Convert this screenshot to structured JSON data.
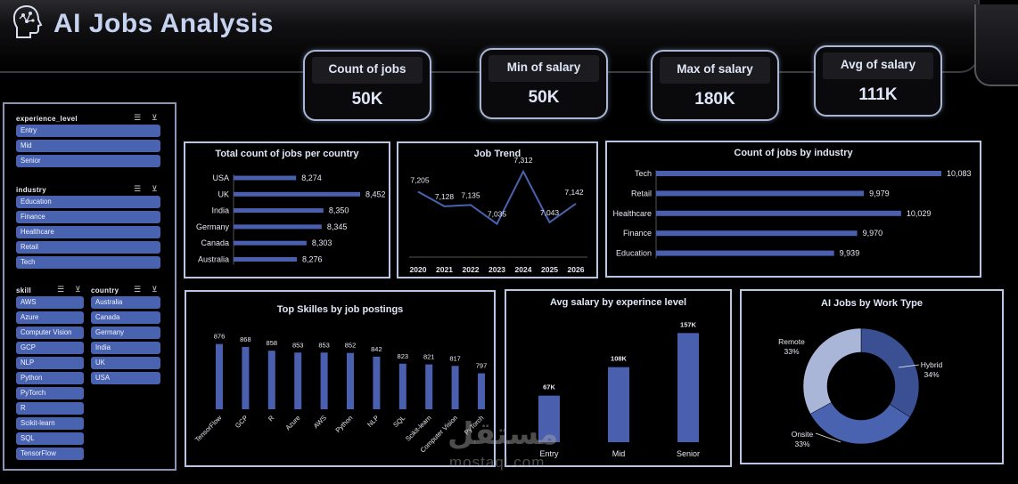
{
  "header": {
    "title": "AI Jobs Analysis",
    "logo_icon": "head-circuit-icon"
  },
  "kpis": [
    {
      "label": "Count of jobs",
      "value": "50K"
    },
    {
      "label": "Min of salary",
      "value": "50K"
    },
    {
      "label": "Max of salary",
      "value": "180K"
    },
    {
      "label": "Avg of salary",
      "value": "111K"
    }
  ],
  "slicers": {
    "experience_level": {
      "title": "experience_level",
      "items": [
        "Entry",
        "Mid",
        "Senior"
      ]
    },
    "industry": {
      "title": "industry",
      "items": [
        "Education",
        "Finance",
        "Healthcare",
        "Retail",
        "Tech"
      ]
    },
    "skill": {
      "title": "skill",
      "items": [
        "AWS",
        "Azure",
        "Computer Vision",
        "GCP",
        "NLP",
        "Python",
        "PyTorch",
        "R",
        "Scikit-learn",
        "SQL",
        "TensorFlow"
      ]
    },
    "country": {
      "title": "country",
      "items": [
        "Australia",
        "Canada",
        "Germany",
        "India",
        "UK",
        "USA"
      ]
    }
  },
  "colors": {
    "bar": "#4a5fae",
    "bar_light": "#8b9bd6",
    "donut": [
      "#3a5092",
      "#4a63b0",
      "#a9b6d8"
    ]
  },
  "watermark": {
    "arabic": "مستقل",
    "latin": "mostaql.com"
  },
  "chart_data": [
    {
      "id": "jobs_per_country",
      "type": "bar",
      "orientation": "horizontal",
      "title": "Total count of jobs per country",
      "categories": [
        "USA",
        "UK",
        "India",
        "Germany",
        "Canada",
        "Australia"
      ],
      "values": [
        8274,
        8452,
        8350,
        8345,
        8303,
        8276
      ],
      "value_labels": [
        "8,274",
        "8,452",
        "8,350",
        "8,345",
        "8,303",
        "8,276"
      ],
      "xlim": [
        8100,
        8452
      ]
    },
    {
      "id": "job_trend",
      "type": "line",
      "title": "Job Trend",
      "x": [
        "2020",
        "2021",
        "2022",
        "2023",
        "2024",
        "2025",
        "2026"
      ],
      "values": [
        7205,
        7128,
        7135,
        7035,
        7312,
        7043,
        7142
      ],
      "value_labels": [
        "7,205",
        "7,128",
        "7,135",
        "7,035",
        "7,312",
        "7,043",
        "7,142"
      ],
      "ylim": [
        7000,
        7330
      ]
    },
    {
      "id": "jobs_by_industry",
      "type": "bar",
      "orientation": "horizontal",
      "title": "Count of jobs by industry",
      "categories": [
        "Tech",
        "Retail",
        "Healthcare",
        "Finance",
        "Education"
      ],
      "values": [
        10083,
        9979,
        10029,
        9970,
        9939
      ],
      "value_labels": [
        "10,083",
        "9,979",
        "10,029",
        "9,970",
        "9,939"
      ],
      "xlim": [
        9700,
        10083
      ]
    },
    {
      "id": "top_skills",
      "type": "bar",
      "title": "Top Skilles  by job postings",
      "categories": [
        "TensorFlow",
        "GCP",
        "R",
        "Azure",
        "AWS",
        "Python",
        "NLP",
        "SQL",
        "Scikit-learn",
        "Computer Vision",
        "PyTorch"
      ],
      "values": [
        876,
        868,
        858,
        853,
        853,
        852,
        842,
        823,
        821,
        817,
        797
      ],
      "ylim": [
        700,
        880
      ]
    },
    {
      "id": "salary_by_experience",
      "type": "bar",
      "title": "Avg salary by experince level",
      "categories": [
        "Entry",
        "Mid",
        "Senior"
      ],
      "values": [
        67,
        108,
        157
      ],
      "value_labels": [
        "67K",
        "108K",
        "157K"
      ],
      "ylim": [
        0,
        160
      ]
    },
    {
      "id": "work_type",
      "type": "pie",
      "donut": true,
      "title": "AI Jobs by Work Type",
      "labels": [
        "Hybrid",
        "Onsite",
        "Remote"
      ],
      "values": [
        34,
        33,
        33
      ],
      "value_labels": [
        "34%",
        "33%",
        "33%"
      ]
    }
  ]
}
